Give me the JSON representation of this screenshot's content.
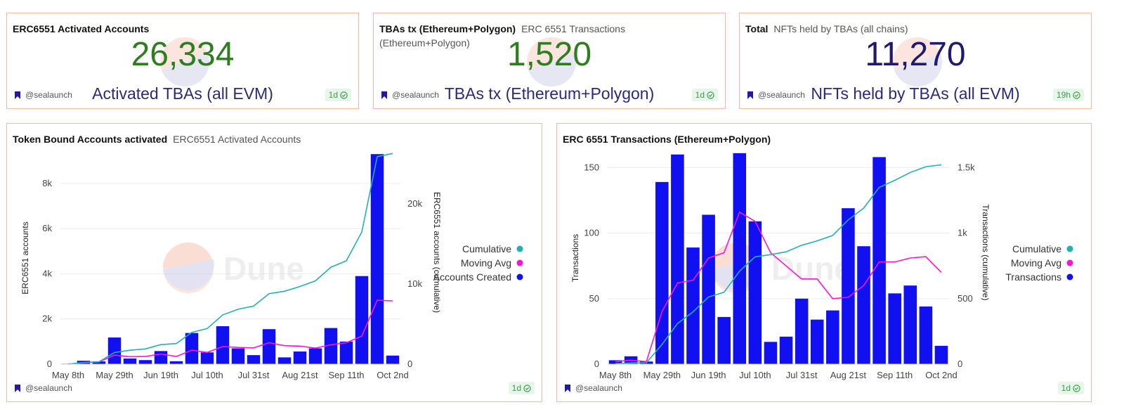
{
  "counters": [
    {
      "title": "ERC6551 Activated Accounts",
      "subtitle": "",
      "value": "26,334",
      "value_color": "#2e7d1f",
      "label": "Activated TBAs (all EVM)",
      "author": "@sealaunch",
      "freshness": "1d"
    },
    {
      "title": "TBAs tx (Ethereum+Polygon)",
      "subtitle": "ERC 6551 Transactions (Ethereum+Polygon)",
      "value": "1,520",
      "value_color": "#2e7d1f",
      "label": "TBAs tx (Ethereum+Polygon)",
      "author": "@sealaunch",
      "freshness": "1d"
    },
    {
      "title": "Total",
      "subtitle": "NFTs held by TBAs (all chains)",
      "value": "11,270",
      "value_color": "#1f1a6e",
      "label": "NFTs held by TBAs (all EVM)",
      "author": "@sealaunch",
      "freshness": "19h"
    }
  ],
  "panels": [
    {
      "title": "Token Bound Accounts activated",
      "subtitle": "ERC6551 Activated Accounts",
      "author": "@sealaunch",
      "freshness": "1d"
    },
    {
      "title": "ERC 6551 Transactions (Ethereum+Polygon)",
      "subtitle": "",
      "author": "@sealaunch",
      "freshness": "1d"
    }
  ],
  "watermark": "Dune",
  "colors": {
    "bar": "#1010f0",
    "cumulative": "#20b2b2",
    "moving_avg": "#ff14d2",
    "border": "#f4b8a8",
    "badge_bg": "#e6f6e9",
    "badge_fg": "#3f9a52"
  },
  "chart_data": [
    {
      "type": "bar",
      "title": "Token Bound Accounts activated",
      "x_ticks": [
        "May 8th",
        "May 29th",
        "Jun 19th",
        "Jul 10th",
        "Jul 31st",
        "Aug 21st",
        "Sep 11th",
        "Oct 2nd"
      ],
      "ylabel": "ERC6551 accounts",
      "ylabel_right": "ERC6551 accounts (cumulative)",
      "ylim": [
        0,
        9400
      ],
      "y_ticks": [
        "0",
        "2k",
        "4k",
        "6k",
        "8k"
      ],
      "y_tick_values": [
        0,
        2000,
        4000,
        6000,
        8000
      ],
      "y2lim": [
        0,
        26500
      ],
      "y2_ticks": [
        "0",
        "10k",
        "20k"
      ],
      "y2_tick_values": [
        0,
        10000,
        20000
      ],
      "legend": [
        "Cumulative",
        "Moving Avg",
        "Accounts Created"
      ],
      "legend_position": "right",
      "series": [
        {
          "name": "Accounts Created",
          "kind": "bar",
          "axis": "left",
          "values": [
            20,
            150,
            120,
            1180,
            250,
            180,
            580,
            130,
            1380,
            520,
            1680,
            700,
            400,
            1550,
            300,
            560,
            700,
            1600,
            1000,
            3900,
            9300,
            380
          ]
        },
        {
          "name": "Moving Avg",
          "kind": "line",
          "axis": "left",
          "values": [
            0,
            70,
            100,
            400,
            330,
            340,
            450,
            340,
            620,
            520,
            780,
            740,
            720,
            950,
            820,
            800,
            710,
            860,
            950,
            1240,
            2830,
            2800
          ]
        },
        {
          "name": "Cumulative",
          "kind": "line",
          "axis": "right",
          "values": [
            20,
            200,
            310,
            1460,
            1740,
            1900,
            2440,
            2570,
            3960,
            4450,
            6150,
            6850,
            7250,
            8800,
            9100,
            9700,
            10400,
            12100,
            12900,
            16500,
            25900,
            26300
          ]
        }
      ]
    },
    {
      "type": "bar",
      "title": "ERC 6551 Transactions (Ethereum+Polygon)",
      "x_ticks": [
        "May 8th",
        "May 29th",
        "Jun 19th",
        "Jul 10th",
        "Jul 31st",
        "Aug 21st",
        "Sep 11th",
        "Oct 2nd"
      ],
      "ylabel": "Transactions",
      "ylabel_right": "Transactions (cumulative)",
      "ylim": [
        0,
        162
      ],
      "y_ticks": [
        "0",
        "50",
        "100",
        "150"
      ],
      "y_tick_values": [
        0,
        50,
        100,
        150
      ],
      "y2lim": [
        0,
        1620
      ],
      "y2_ticks": [
        "0",
        "500",
        "1k",
        "1.5k"
      ],
      "y2_tick_values": [
        0,
        500,
        1000,
        1500
      ],
      "legend": [
        "Cumulative",
        "Moving Avg",
        "Transactions"
      ],
      "legend_position": "right",
      "series": [
        {
          "name": "Transactions",
          "kind": "bar",
          "axis": "left",
          "values": [
            3,
            6,
            2,
            139,
            160,
            89,
            114,
            36,
            161,
            109,
            17,
            21,
            50,
            34,
            41,
            119,
            90,
            158,
            54,
            60,
            44,
            14
          ]
        },
        {
          "name": "Moving Avg",
          "kind": "line",
          "axis": "left",
          "values": [
            2,
            3,
            2,
            40,
            62,
            64,
            81,
            85,
            116,
            109,
            85,
            75,
            65,
            65,
            50,
            51,
            60,
            78,
            78,
            81,
            82,
            70
          ]
        },
        {
          "name": "Cumulative",
          "kind": "line",
          "axis": "right",
          "values": [
            3,
            9,
            11,
            150,
            310,
            399,
            513,
            549,
            710,
            819,
            836,
            857,
            907,
            941,
            982,
            1101,
            1191,
            1349,
            1403,
            1463,
            1507,
            1521
          ]
        }
      ]
    }
  ]
}
